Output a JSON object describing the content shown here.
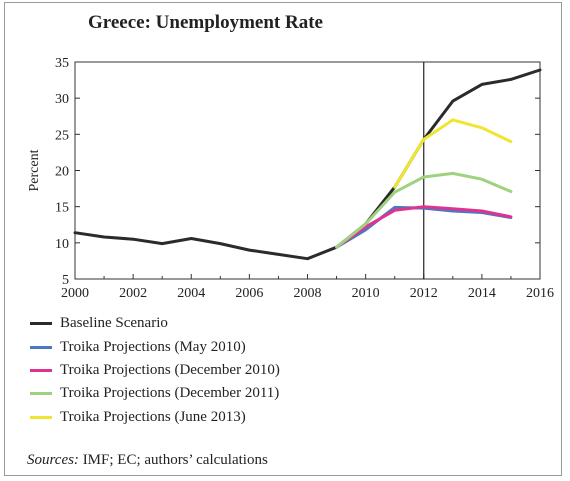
{
  "chart_data": {
    "type": "line",
    "title": "Greece: Unemployment Rate",
    "ylabel": "Percent",
    "xlabel": "",
    "xlim": [
      2000,
      2016
    ],
    "ylim": [
      5,
      35
    ],
    "xticks": [
      2000,
      2002,
      2004,
      2006,
      2008,
      2010,
      2012,
      2014,
      2016
    ],
    "yticks": [
      5,
      10,
      15,
      20,
      25,
      30,
      35
    ],
    "vline": 2012,
    "grid": false,
    "legend_position": "bottom",
    "series": [
      {
        "name": "Baseline Scenario",
        "color": "#2b2b2b",
        "x": [
          2000,
          2001,
          2002,
          2003,
          2004,
          2005,
          2006,
          2007,
          2008,
          2009,
          2010,
          2011,
          2012,
          2013,
          2014,
          2015,
          2016
        ],
        "y": [
          11.4,
          10.8,
          10.5,
          9.9,
          10.6,
          9.9,
          9.0,
          8.4,
          7.8,
          9.4,
          12.6,
          17.7,
          24.3,
          29.6,
          31.9,
          32.6,
          33.9
        ]
      },
      {
        "name": "Troika Projections (May 2010)",
        "color": "#4a78c4",
        "x": [
          2009,
          2010,
          2011,
          2012,
          2013,
          2014,
          2015
        ],
        "y": [
          9.4,
          11.8,
          14.9,
          14.8,
          14.4,
          14.2,
          13.5
        ]
      },
      {
        "name": "Troika Projections (December 2010)",
        "color": "#e0338f",
        "x": [
          2009,
          2010,
          2011,
          2012,
          2013,
          2014,
          2015
        ],
        "y": [
          9.4,
          12.2,
          14.5,
          15.0,
          14.7,
          14.4,
          13.6
        ]
      },
      {
        "name": "Troika Projections (December 2011)",
        "color": "#9fd27e",
        "x": [
          2009,
          2010,
          2011,
          2012,
          2013,
          2014,
          2015
        ],
        "y": [
          9.4,
          12.6,
          17.0,
          19.1,
          19.6,
          18.8,
          17.1
        ]
      },
      {
        "name": "Troika Projections (June 2013)",
        "color": "#f0e530",
        "x": [
          2011,
          2012,
          2013,
          2014,
          2015
        ],
        "y": [
          17.7,
          24.3,
          27.0,
          25.9,
          24.0
        ]
      }
    ]
  },
  "source_prefix": "Sources:",
  "source_text": " IMF; EC; authors’ calculations"
}
